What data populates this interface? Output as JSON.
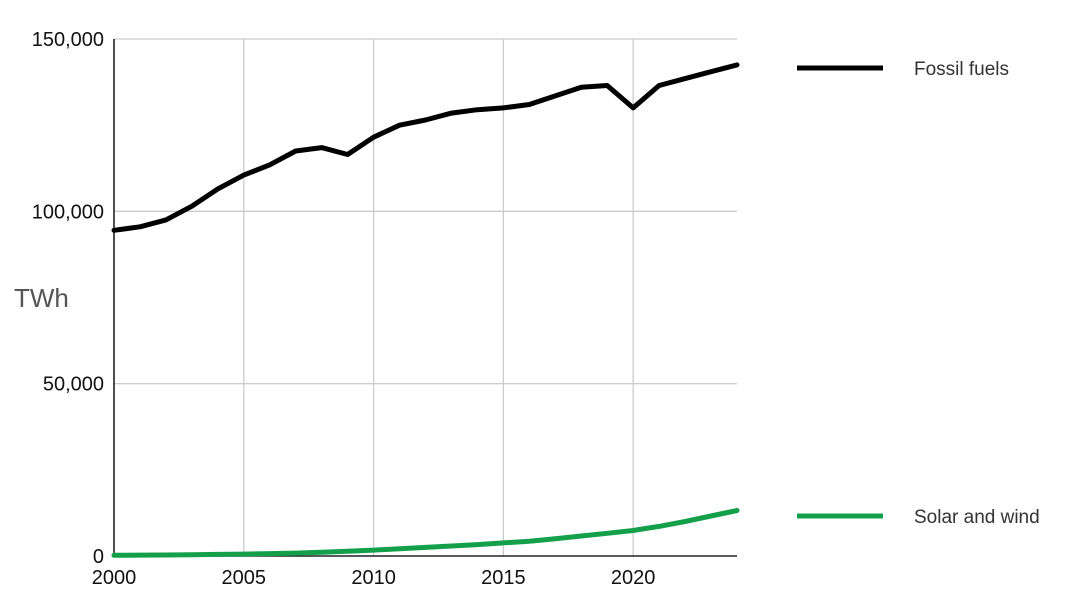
{
  "chart_data": {
    "type": "line",
    "title": "",
    "xlabel": "",
    "ylabel": "TWh",
    "xlim": [
      2000,
      2024
    ],
    "ylim": [
      0,
      150000
    ],
    "grid": true,
    "legend_position": "right",
    "x_ticks": [
      2000,
      2005,
      2010,
      2015,
      2020
    ],
    "x_tick_labels": [
      "2000",
      "2005",
      "2010",
      "2015",
      "2020"
    ],
    "y_ticks": [
      0,
      50000,
      100000,
      150000
    ],
    "y_tick_labels": [
      "0",
      "50,000",
      "100,000",
      "150,000"
    ],
    "x": [
      2000,
      2001,
      2002,
      2003,
      2004,
      2005,
      2006,
      2007,
      2008,
      2009,
      2010,
      2011,
      2012,
      2013,
      2014,
      2015,
      2016,
      2017,
      2018,
      2019,
      2020,
      2021,
      2022,
      2023,
      2024
    ],
    "series": [
      {
        "name": "Fossil fuels",
        "color": "#000000",
        "values": [
          94500,
          95500,
          97500,
          101500,
          106500,
          110500,
          113500,
          117500,
          118500,
          116500,
          121500,
          125000,
          126500,
          128500,
          129500,
          130000,
          131000,
          133500,
          136000,
          136500,
          130000,
          136500,
          138500,
          140500,
          142500
        ]
      },
      {
        "name": "Solar and wind",
        "color": "#14a04a",
        "values": [
          200,
          250,
          300,
          350,
          450,
          550,
          700,
          850,
          1100,
          1350,
          1700,
          2100,
          2500,
          2900,
          3300,
          3800,
          4300,
          5000,
          5800,
          6600,
          7400,
          8600,
          10000,
          11600,
          13200
        ]
      }
    ]
  }
}
